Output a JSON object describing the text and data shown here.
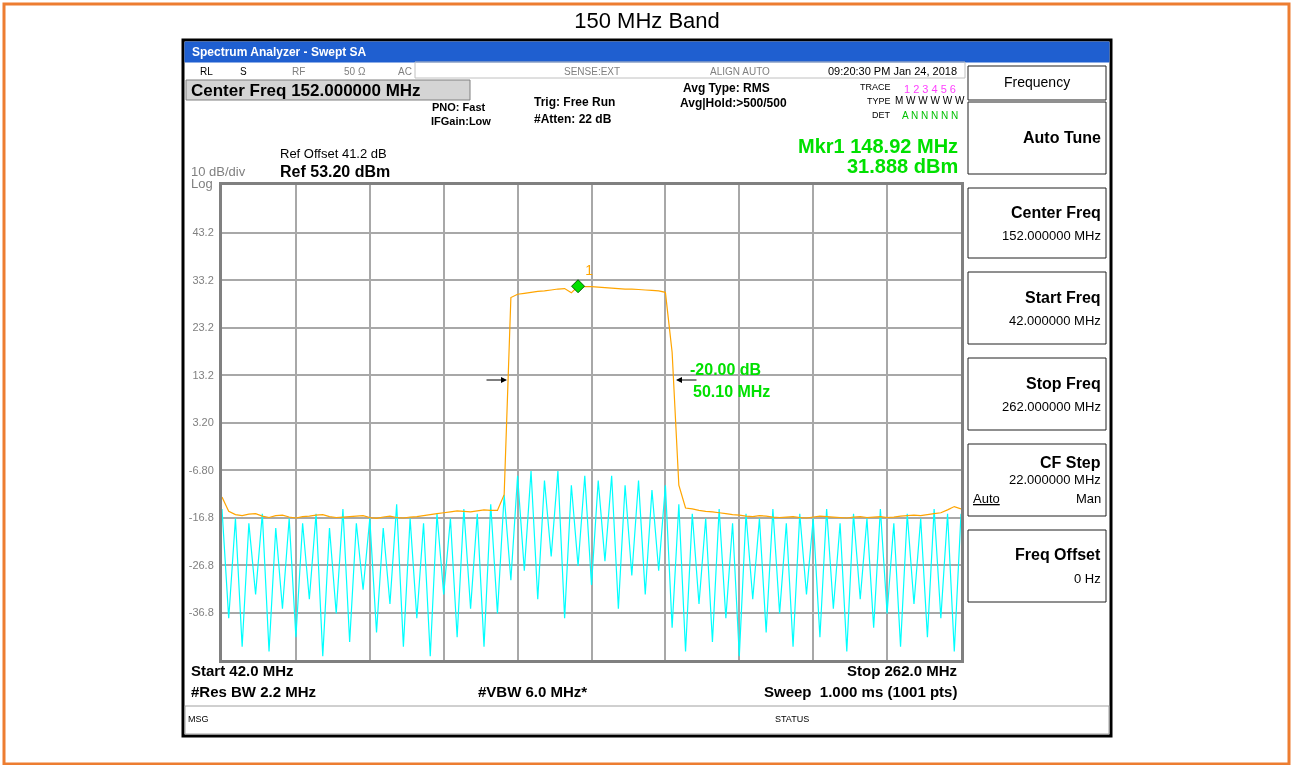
{
  "chart_data": {
    "type": "line",
    "title": "150 MHz Band",
    "ylabel": "10 dB/div",
    "categories": [
      null,
      null,
      null,
      null,
      null,
      null,
      null,
      null,
      null,
      null,
      null,
      null,
      null,
      null,
      null,
      null,
      null,
      null,
      null,
      null,
      null,
      null,
      null,
      null,
      null,
      null,
      null,
      null,
      null,
      null,
      null,
      null,
      null,
      null,
      null,
      null,
      null,
      null,
      null,
      null,
      null,
      null,
      null,
      null,
      null,
      null,
      null,
      null,
      null,
      null,
      null,
      null,
      null,
      null,
      null,
      null,
      null,
      null,
      null,
      null,
      null,
      null,
      null,
      null,
      null,
      null,
      null,
      null,
      null,
      null,
      null,
      null,
      null,
      null,
      null,
      null,
      null,
      null,
      null,
      null,
      null,
      null,
      null,
      null,
      null,
      null,
      null,
      null,
      null,
      null,
      null,
      null,
      null,
      null,
      null,
      null,
      null,
      null,
      null,
      null,
      null,
      null,
      null,
      null,
      null,
      null,
      null,
      null,
      null,
      null,
      null
    ],
    "ylim": [
      -46.8,
      53.2
    ],
    "yticks": [
      43.2,
      33.2,
      23.2,
      13.2,
      {
        "value": 3.2,
        "label": "3.20"
      },
      {
        "value": -6.8,
        "label": "-6.80"
      },
      -16.8,
      -26.8,
      -36.8
    ],
    "tick_labels": "y",
    "grid": true,
    "series": [
      {
        "color": "#00ffff",
        "values": [
          -15,
          -38,
          -17,
          -44,
          -18,
          -33,
          -16,
          -45,
          -19,
          -36,
          -17,
          -42,
          -18,
          -34,
          -16,
          -46,
          -19,
          -37,
          -15,
          -43,
          -18,
          -32,
          -17,
          -41,
          -19,
          -35,
          -14,
          -44,
          -17,
          -38,
          -18,
          -46,
          -16,
          -33,
          -17,
          -42,
          -15,
          -36,
          -16,
          -44,
          -14,
          -37,
          -12,
          -30,
          -8,
          -28,
          -7,
          -34,
          -9,
          -25,
          -7,
          -38,
          -10,
          -27,
          -8,
          -31,
          -9,
          -26,
          -8,
          -36,
          -10,
          -29,
          -9,
          -33,
          -11,
          -28,
          -10,
          -40,
          -14,
          -45,
          -16,
          -35,
          -17,
          -43,
          -15,
          -38,
          -18,
          -46,
          -16,
          -34,
          -17,
          -41,
          -15,
          -37,
          -18,
          -44,
          -16,
          -33,
          -17,
          -42,
          -15,
          -36,
          -18,
          -45,
          -16,
          -34,
          -17,
          -40,
          -15,
          -37,
          -18,
          -44,
          -16,
          -35,
          -17,
          -42,
          -15,
          -38,
          -16,
          -45,
          -16
        ]
      },
      {
        "color": "#ffa500",
        "values": [
          -12.5,
          -15.5,
          -16.2,
          -16.4,
          -16.1,
          -16.0,
          -16.5,
          -16.8,
          -16.4,
          -16.3,
          -16.7,
          -16.9,
          -16.6,
          -16.5,
          -16.3,
          -16.2,
          -16.6,
          -16.8,
          -16.7,
          -16.6,
          -16.5,
          -16.4,
          -16.8,
          -17.0,
          -16.7,
          -16.5,
          -16.8,
          -16.9,
          -16.7,
          -16.6,
          -16.4,
          -16.2,
          -16.0,
          -15.8,
          -15.6,
          -15.4,
          -15.5,
          -15.6,
          -15.4,
          -15.2,
          -15.3,
          -15.3,
          -12,
          29.5,
          30.2,
          30.4,
          30.6,
          30.8,
          30.9,
          31.1,
          31.3,
          31.4,
          30.5,
          31.888,
          31.8,
          31.8,
          31.7,
          31.6,
          31.5,
          31.4,
          31.3,
          31.3,
          31.2,
          31.1,
          31.0,
          30.9,
          30.6,
          18,
          -10,
          -14.8,
          -15.0,
          -15.3,
          -15.5,
          -15.6,
          -15.8,
          -16.0,
          -16.2,
          -16.3,
          -16.5,
          -16.6,
          -16.4,
          -16.5,
          -16.7,
          -16.8,
          -16.7,
          -16.6,
          -16.8,
          -16.9,
          -16.7,
          -16.5,
          -16.6,
          -16.7,
          -16.8,
          -16.9,
          -16.7,
          -16.6,
          -16.8,
          -16.7,
          -16.6,
          -16.8,
          -16.7,
          -16.5,
          -16.4,
          -16.3,
          -16.4,
          -16.2,
          -16.0,
          -15.8,
          -15.2,
          -14.5,
          -15.0
        ]
      },
      {
        "type": "scatter",
        "name": "1",
        "color": "#00e000",
        "marker": "diamond",
        "values": [
          null,
          null,
          null,
          null,
          null,
          null,
          null,
          null,
          null,
          null,
          null,
          null,
          null,
          null,
          null,
          null,
          null,
          null,
          null,
          null,
          null,
          null,
          null,
          null,
          null,
          null,
          null,
          null,
          null,
          null,
          null,
          null,
          null,
          null,
          null,
          null,
          null,
          null,
          null,
          null,
          null,
          null,
          null,
          null,
          null,
          null,
          null,
          null,
          null,
          null,
          null,
          null,
          null,
          31.888,
          null,
          null,
          null,
          null,
          null,
          null,
          null,
          null,
          null,
          null,
          null,
          null,
          null,
          null,
          null,
          null,
          null,
          null,
          null,
          null,
          null,
          null,
          null,
          null,
          null,
          null,
          null,
          null,
          null,
          null,
          null,
          null,
          null,
          null,
          null,
          null,
          null,
          null,
          null,
          null,
          null,
          null,
          null,
          null,
          null,
          null,
          null,
          null,
          null,
          null,
          null,
          null,
          null,
          null,
          null,
          null,
          null
        ]
      }
    ],
    "annotations": [
      "Spectrum Analyzer - Swept SA",
      "RL",
      "S",
      "RF",
      "50 Ω",
      "AC",
      "SENSE:EXT",
      "ALIGN AUTO",
      "09:20:30 PM Jan 24, 2018",
      "Center Freq 152.000000 MHz",
      "PNO: Fast",
      "IFGain:Low",
      "Trig: Free Run",
      "#Atten: 22 dB",
      "Avg Type: RMS",
      "Avg|Hold:>500/500",
      "TRACE",
      "1 2 3 4 5 6",
      "TYPE",
      "M W W W W W",
      "DET",
      "A N N N N N",
      "Ref Offset 41.2 dB",
      "Ref 53.20 dBm",
      "Mkr1 148.92 MHz",
      "31.888 dBm",
      "Log",
      "Start 42.0 MHz",
      "Stop 262.0 MHz",
      "#Res BW 2.2 MHz",
      "#VBW 6.0 MHz*",
      "Sweep  1.000 ms (1001 pts)",
      "MSG",
      "STATUS",
      "Frequency",
      "Auto Tune",
      "Center Freq",
      "152.000000 MHz",
      "Start Freq",
      "42.000000 MHz",
      "Stop Freq",
      "262.000000 MHz",
      "CF Step",
      "22.000000 MHz",
      "Auto",
      "Man",
      "Freq Offset",
      "0 Hz",
      "50.10 MHz",
      "-20.00 dB"
    ]
  }
}
